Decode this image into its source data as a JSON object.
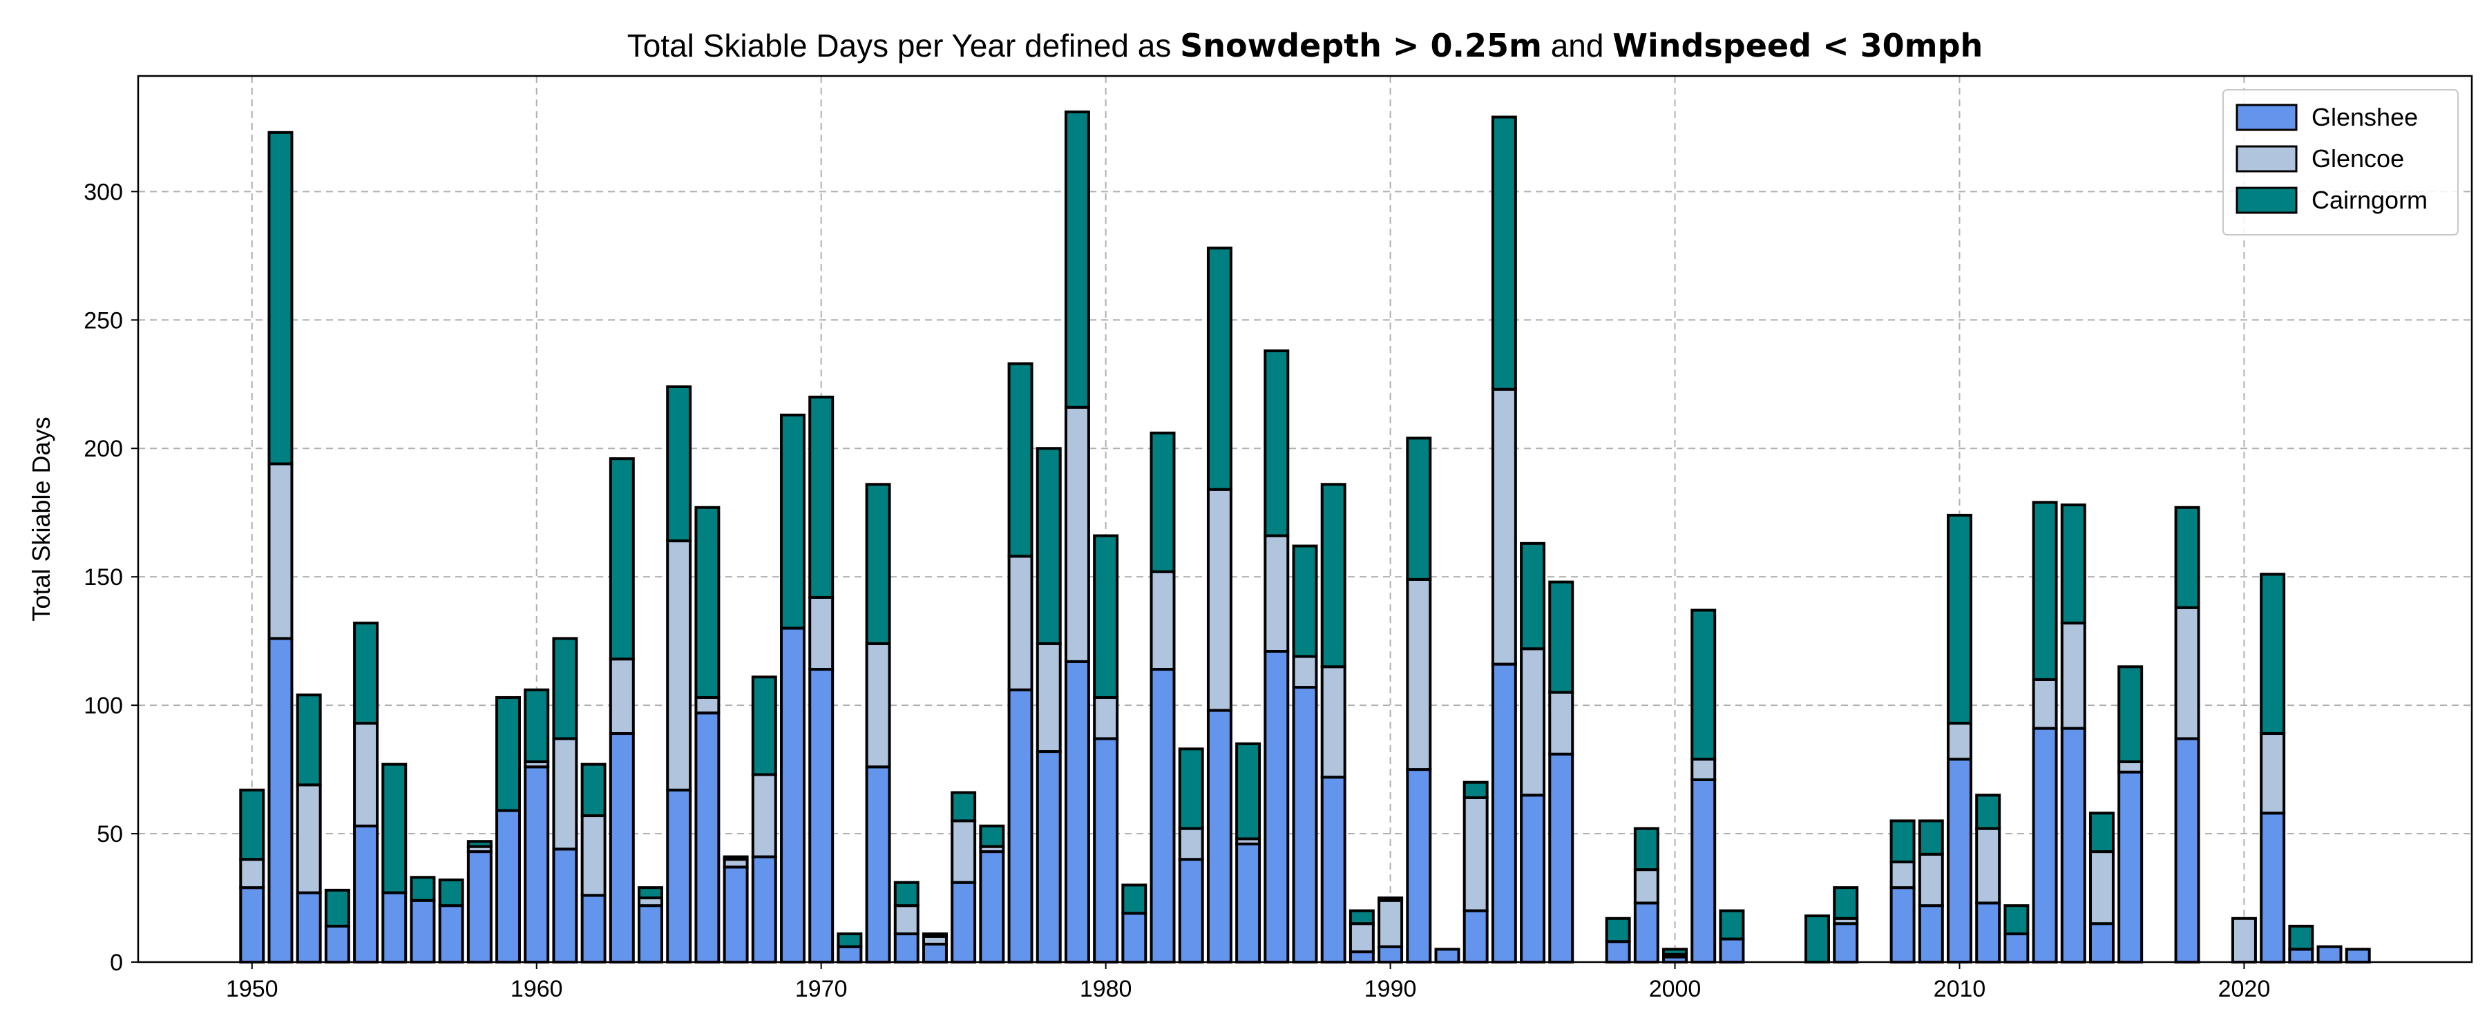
{
  "chart_data": {
    "type": "bar",
    "stacked": true,
    "title": {
      "parts": [
        {
          "text": "Total Skiable Days per Year defined as ",
          "bold": false
        },
        {
          "text": "Snowdepth > 0.25m",
          "bold": true
        },
        {
          "text": " and ",
          "bold": false
        },
        {
          "text": "Windspeed < 30mph",
          "bold": true
        }
      ]
    },
    "xlabel": "",
    "ylabel": "Total Skiable Days",
    "xlim": [
      1946,
      2028
    ],
    "ylim": [
      0,
      345
    ],
    "xticks": [
      1950,
      1960,
      1970,
      1980,
      1990,
      2000,
      2010,
      2020
    ],
    "yticks": [
      0,
      50,
      100,
      150,
      200,
      250,
      300
    ],
    "grid": true,
    "legend_position": "top-right",
    "categories": [
      1950,
      1951,
      1952,
      1953,
      1954,
      1955,
      1956,
      1957,
      1958,
      1959,
      1960,
      1961,
      1962,
      1963,
      1964,
      1965,
      1966,
      1967,
      1968,
      1969,
      1970,
      1971,
      1972,
      1973,
      1974,
      1975,
      1976,
      1977,
      1978,
      1979,
      1980,
      1981,
      1982,
      1983,
      1984,
      1985,
      1986,
      1987,
      1988,
      1989,
      1990,
      1991,
      1992,
      1993,
      1994,
      1995,
      1996,
      1997,
      1998,
      1999,
      2000,
      2001,
      2002,
      2003,
      2004,
      2005,
      2006,
      2007,
      2008,
      2009,
      2010,
      2011,
      2012,
      2013,
      2014,
      2015,
      2016,
      2017,
      2018,
      2019,
      2020,
      2021,
      2022,
      2023,
      2024
    ],
    "series": [
      {
        "name": "Glenshee",
        "color": "#6495ed",
        "values": [
          29,
          126,
          27,
          14,
          53,
          27,
          24,
          22,
          43,
          59,
          76,
          44,
          26,
          89,
          22,
          67,
          97,
          37,
          41,
          130,
          114,
          6,
          76,
          11,
          7,
          31,
          43,
          106,
          82,
          117,
          87,
          19,
          114,
          40,
          98,
          46,
          121,
          107,
          72,
          4,
          6,
          75,
          5,
          20,
          116,
          65,
          81,
          0,
          8,
          23,
          2,
          71,
          9,
          0,
          0,
          0,
          15,
          0,
          29,
          22,
          79,
          23,
          11,
          91,
          91,
          15,
          74,
          0,
          87,
          0,
          0,
          58,
          5,
          6,
          5
        ]
      },
      {
        "name": "Glencoe",
        "color": "#b0c4de",
        "values": [
          11,
          68,
          42,
          0,
          40,
          0,
          0,
          0,
          2,
          0,
          2,
          43,
          31,
          29,
          3,
          97,
          6,
          3,
          32,
          0,
          28,
          0,
          48,
          11,
          3,
          24,
          2,
          52,
          42,
          99,
          16,
          0,
          38,
          12,
          86,
          2,
          45,
          12,
          43,
          11,
          18,
          74,
          0,
          44,
          107,
          57,
          24,
          0,
          0,
          13,
          1,
          8,
          0,
          0,
          0,
          0,
          2,
          0,
          10,
          20,
          14,
          29,
          0,
          19,
          41,
          28,
          4,
          0,
          51,
          0,
          17,
          31,
          0,
          0,
          0
        ]
      },
      {
        "name": "Cairngorm",
        "color": "#008080",
        "values": [
          27,
          129,
          35,
          14,
          39,
          50,
          9,
          10,
          2,
          44,
          28,
          39,
          20,
          78,
          4,
          60,
          74,
          1,
          38,
          83,
          78,
          5,
          62,
          9,
          1,
          11,
          8,
          75,
          76,
          115,
          63,
          11,
          54,
          31,
          94,
          37,
          72,
          43,
          71,
          5,
          1,
          55,
          0,
          6,
          106,
          41,
          43,
          0,
          9,
          16,
          2,
          58,
          11,
          0,
          0,
          18,
          12,
          0,
          16,
          13,
          81,
          13,
          11,
          69,
          46,
          15,
          37,
          0,
          39,
          0,
          0,
          62,
          9,
          0,
          0
        ]
      }
    ]
  }
}
